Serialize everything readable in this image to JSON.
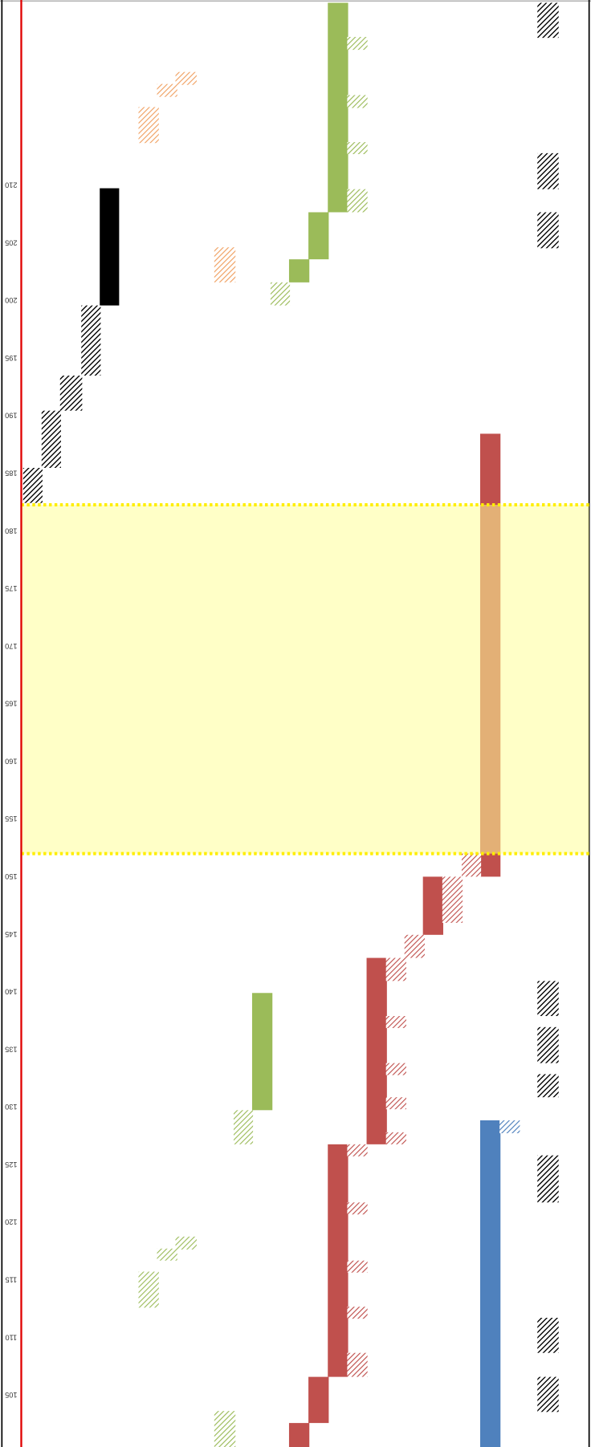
{
  "axis": {
    "ticks": [
      210,
      205,
      200,
      195,
      190,
      185,
      180,
      175,
      170,
      165,
      160,
      155,
      150,
      145,
      140,
      135,
      130,
      125,
      120,
      115,
      110,
      105
    ]
  }
}
